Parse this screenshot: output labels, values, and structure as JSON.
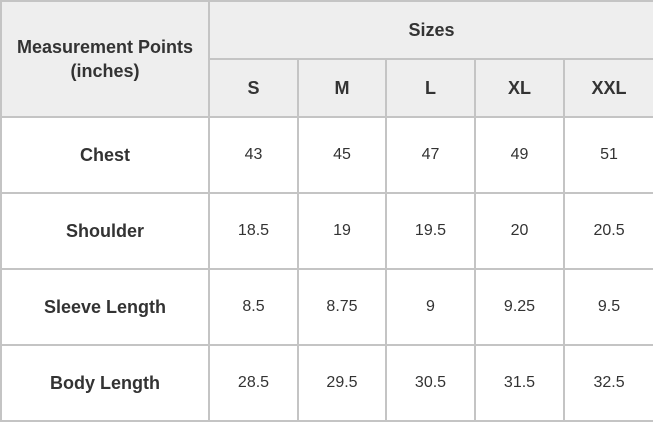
{
  "table": {
    "corner_header": "Measurement Points\n(inches)",
    "corner_line1": "Measurement Points",
    "corner_line2": "(inches)",
    "group_header": "Sizes",
    "sizes": [
      "S",
      "M",
      "L",
      "XL",
      "XXL"
    ],
    "rows": [
      {
        "label": "Chest",
        "values": [
          "43",
          "45",
          "47",
          "49",
          "51"
        ]
      },
      {
        "label": "Shoulder",
        "values": [
          "18.5",
          "19",
          "19.5",
          "20",
          "20.5"
        ]
      },
      {
        "label": "Sleeve Length",
        "values": [
          "8.5",
          "8.75",
          "9",
          "9.25",
          "9.5"
        ]
      },
      {
        "label": "Body Length",
        "values": [
          "28.5",
          "29.5",
          "30.5",
          "31.5",
          "32.5"
        ]
      }
    ]
  },
  "colors": {
    "header_bg": "#eeeeee",
    "border": "#c4c4c4",
    "text": "#333333"
  }
}
